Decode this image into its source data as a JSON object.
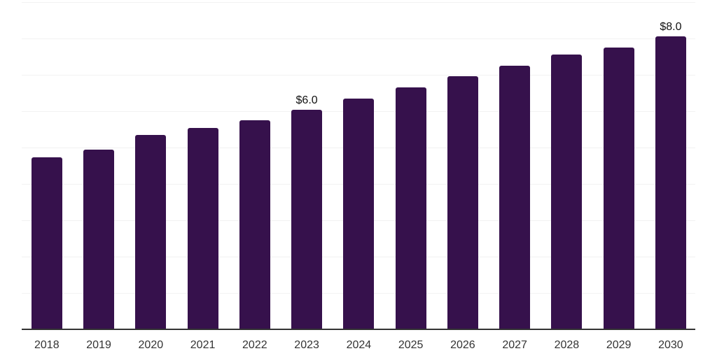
{
  "chart_data": {
    "type": "bar",
    "title": "",
    "xlabel": "",
    "ylabel": "",
    "categories": [
      "2018",
      "2019",
      "2020",
      "2021",
      "2022",
      "2023",
      "2024",
      "2025",
      "2026",
      "2027",
      "2028",
      "2029",
      "2030"
    ],
    "values": [
      4.7,
      4.9,
      5.3,
      5.5,
      5.7,
      6.0,
      6.3,
      6.6,
      6.9,
      7.2,
      7.5,
      7.7,
      8.0
    ],
    "data_labels": [
      {
        "category": "2023",
        "text": "$6.0"
      },
      {
        "category": "2030",
        "text": "$8.0"
      }
    ],
    "ylim": [
      0,
      9
    ],
    "gridline_step": 1,
    "grid": "horizontal",
    "legend": "none",
    "y_tick_labels_shown": false,
    "colors": {
      "bar": "#36114c",
      "gridline": "#f2f2f2",
      "axis_line": "#333333",
      "tick_label": "#333333",
      "data_label": "#111111",
      "background": "#ffffff"
    }
  }
}
